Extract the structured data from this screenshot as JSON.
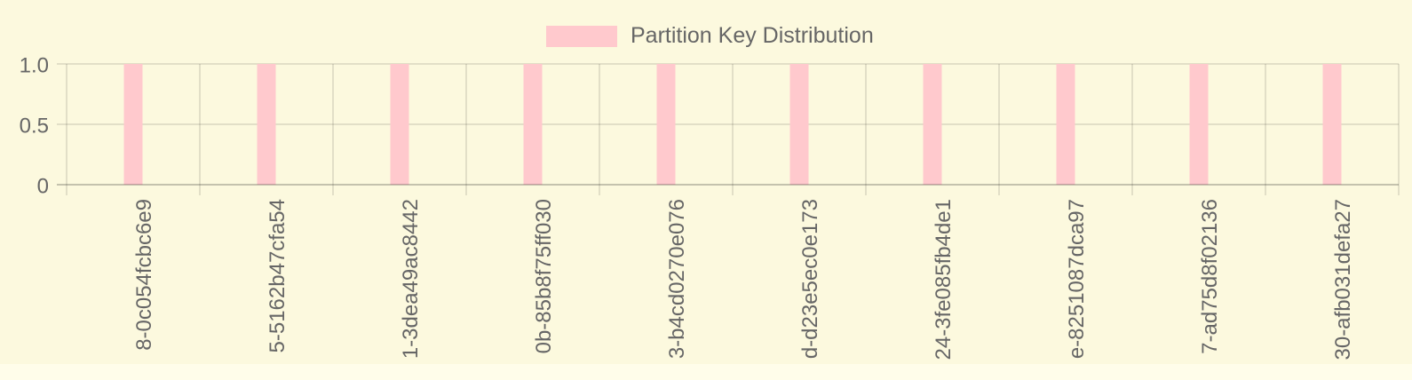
{
  "chart_data": {
    "type": "bar",
    "title": "Partition Key Distribution",
    "legend": {
      "label": "Partition Key Distribution",
      "position": "top-center"
    },
    "categories": [
      "8-0c054fcbc6e9",
      "5-5162b47cfa54",
      "1-3dea49ac8442",
      "0b-85b8f75ff030",
      "3-b4cd0270e076",
      "d-d23e5ec0e173",
      "24-3fe085fb4de1",
      "e-8251087dca97",
      "7-ad75d8f02136",
      "30-afb031defa27"
    ],
    "values": [
      1,
      1,
      1,
      1,
      1,
      1,
      1,
      1,
      1,
      1
    ],
    "xlabel": "",
    "ylabel": "",
    "ylim": [
      0,
      1
    ],
    "yticks": [
      {
        "value": 1,
        "label": "1.0"
      },
      {
        "value": 0.5,
        "label": "0.5"
      },
      {
        "value": 0,
        "label": "0"
      }
    ],
    "x_tick_rotation_deg": 90,
    "x_labels_clipped_at_bottom": true,
    "grid": {
      "horizontal": true,
      "vertical": true
    },
    "colors": {
      "bar": "#ffc9cd",
      "legend_swatch": "#ffc9cd",
      "background": "#fcf9de",
      "page_background": "#fffdea",
      "grid": "rgba(0,0,0,0.10)",
      "axis_zero_line": "rgba(0,0,0,0.22)",
      "text": "#666666"
    }
  }
}
